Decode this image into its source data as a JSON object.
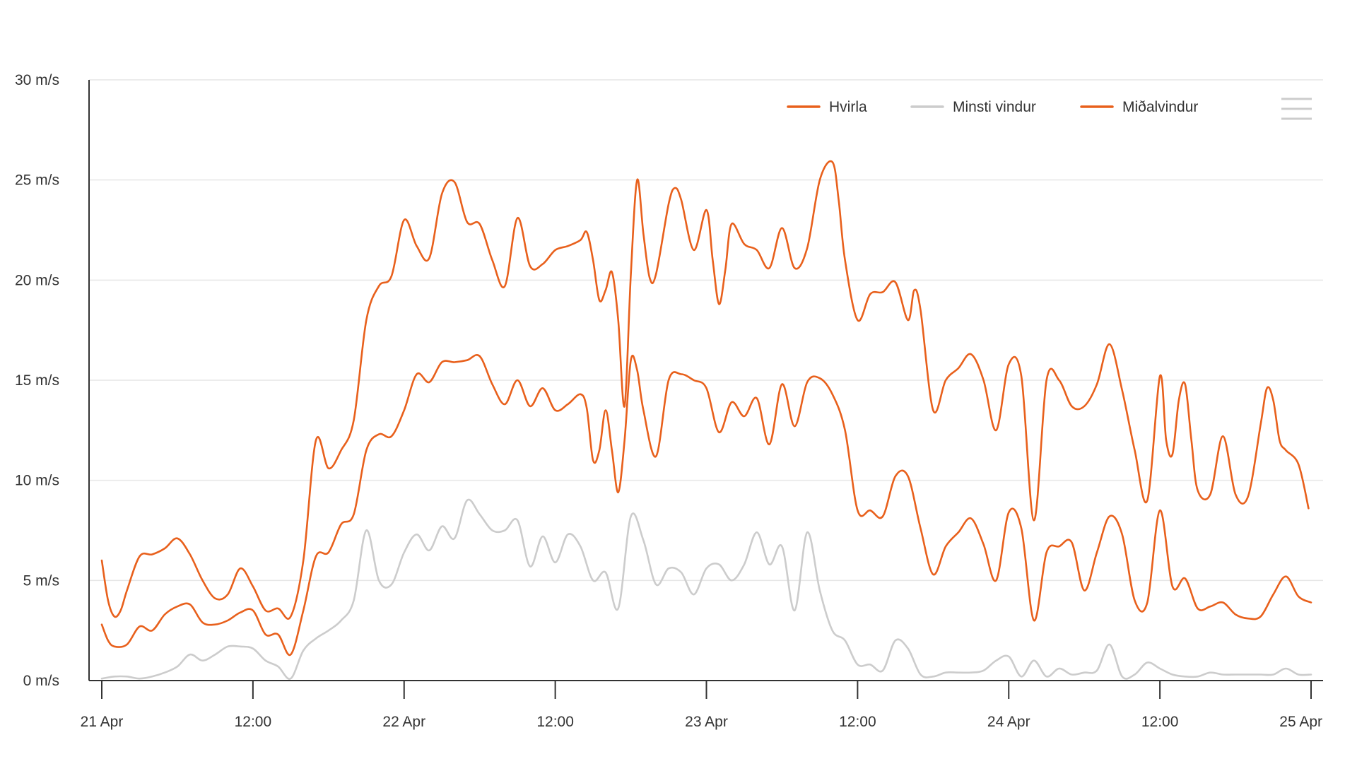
{
  "chart_data": {
    "type": "line",
    "y_unit": "m/s",
    "ylim": [
      0,
      30
    ],
    "y_ticks": [
      {
        "value": 0,
        "label": "0 m/s"
      },
      {
        "value": 5,
        "label": "5 m/s"
      },
      {
        "value": 10,
        "label": "10 m/s"
      },
      {
        "value": 15,
        "label": "15 m/s"
      },
      {
        "value": 20,
        "label": "20 m/s"
      },
      {
        "value": 25,
        "label": "25 m/s"
      },
      {
        "value": 30,
        "label": "30 m/s"
      }
    ],
    "x_unit": "hours since 21 Apr 00:00",
    "xlim": [
      0,
      96
    ],
    "x_ticks": [
      {
        "value": 0,
        "label": "21 Apr"
      },
      {
        "value": 12,
        "label": "12:00"
      },
      {
        "value": 24,
        "label": "22 Apr"
      },
      {
        "value": 36,
        "label": "12:00"
      },
      {
        "value": 48,
        "label": "23 Apr"
      },
      {
        "value": 60,
        "label": "12:00"
      },
      {
        "value": 72,
        "label": "24 Apr"
      },
      {
        "value": 84,
        "label": "12:00"
      },
      {
        "value": 96,
        "label": "25 Apr"
      }
    ],
    "grid": true,
    "legend_position": "top-right",
    "series": [
      {
        "name": "Hvirla",
        "color": "#e8601c",
        "points": [
          [
            0,
            6.0
          ],
          [
            0.5,
            4.0
          ],
          [
            1,
            3.2
          ],
          [
            1.5,
            3.5
          ],
          [
            2,
            4.5
          ],
          [
            3,
            6.2
          ],
          [
            4,
            6.3
          ],
          [
            5,
            6.6
          ],
          [
            6,
            7.1
          ],
          [
            7,
            6.3
          ],
          [
            8,
            5.0
          ],
          [
            9,
            4.1
          ],
          [
            10,
            4.3
          ],
          [
            11,
            5.6
          ],
          [
            12,
            4.7
          ],
          [
            13,
            3.5
          ],
          [
            14,
            3.6
          ],
          [
            15,
            3.2
          ],
          [
            16,
            6.0
          ],
          [
            17,
            12.0
          ],
          [
            18,
            10.6
          ],
          [
            19,
            11.5
          ],
          [
            20,
            13.0
          ],
          [
            21,
            18.0
          ],
          [
            22,
            19.7
          ],
          [
            23,
            20.2
          ],
          [
            24,
            23.0
          ],
          [
            25,
            21.7
          ],
          [
            26,
            21.1
          ],
          [
            27,
            24.3
          ],
          [
            28,
            24.9
          ],
          [
            29,
            22.9
          ],
          [
            30,
            22.8
          ],
          [
            31,
            21.0
          ],
          [
            32,
            19.7
          ],
          [
            33,
            23.1
          ],
          [
            34,
            20.7
          ],
          [
            35,
            20.8
          ],
          [
            36,
            21.5
          ],
          [
            37,
            21.7
          ],
          [
            38,
            22.0
          ],
          [
            38.5,
            22.4
          ],
          [
            39,
            21.0
          ],
          [
            39.5,
            19.0
          ],
          [
            40,
            19.5
          ],
          [
            40.5,
            20.4
          ],
          [
            41,
            18.0
          ],
          [
            41.5,
            13.7
          ],
          [
            42,
            20.3
          ],
          [
            42.5,
            25.0
          ],
          [
            43,
            22.3
          ],
          [
            43.5,
            20.1
          ],
          [
            44,
            20.3
          ],
          [
            45,
            23.8
          ],
          [
            45.5,
            24.6
          ],
          [
            46,
            24.0
          ],
          [
            47,
            21.5
          ],
          [
            48,
            23.5
          ],
          [
            48.5,
            21.0
          ],
          [
            49,
            18.8
          ],
          [
            49.5,
            20.5
          ],
          [
            50,
            22.8
          ],
          [
            51,
            21.8
          ],
          [
            52,
            21.5
          ],
          [
            53,
            20.6
          ],
          [
            54,
            22.6
          ],
          [
            55,
            20.6
          ],
          [
            56,
            21.6
          ],
          [
            57,
            25.0
          ],
          [
            58,
            25.9
          ],
          [
            58.5,
            24.0
          ],
          [
            59,
            21.0
          ],
          [
            60,
            18.0
          ],
          [
            61,
            19.3
          ],
          [
            62,
            19.4
          ],
          [
            63,
            19.9
          ],
          [
            64,
            18.0
          ],
          [
            64.5,
            19.5
          ],
          [
            65,
            18.5
          ],
          [
            66,
            13.5
          ],
          [
            67,
            15.0
          ],
          [
            68,
            15.6
          ],
          [
            69,
            16.3
          ],
          [
            70,
            15.0
          ],
          [
            71,
            12.5
          ],
          [
            72,
            15.8
          ],
          [
            73,
            15.2
          ],
          [
            74,
            8.0
          ],
          [
            75,
            15.0
          ],
          [
            76,
            15.0
          ],
          [
            77,
            13.7
          ],
          [
            78,
            13.7
          ],
          [
            79,
            14.8
          ],
          [
            80,
            16.8
          ],
          [
            81,
            14.5
          ],
          [
            82,
            11.5
          ],
          [
            83,
            9.0
          ],
          [
            84,
            15.2
          ],
          [
            84.5,
            12.0
          ],
          [
            85,
            11.3
          ],
          [
            85.5,
            14.0
          ],
          [
            86,
            14.8
          ],
          [
            86.5,
            12.0
          ],
          [
            87,
            9.5
          ],
          [
            88,
            9.3
          ],
          [
            89,
            12.2
          ],
          [
            90,
            9.3
          ],
          [
            91,
            9.2
          ],
          [
            92,
            12.8
          ],
          [
            92.5,
            14.6
          ],
          [
            93,
            14.0
          ],
          [
            93.5,
            12.0
          ],
          [
            94,
            11.5
          ],
          [
            95,
            10.8
          ],
          [
            95.8,
            8.6
          ]
        ]
      },
      {
        "name": "Minsti vindur",
        "color": "#cccccc",
        "points": [
          [
            0,
            0.1
          ],
          [
            1,
            0.2
          ],
          [
            2,
            0.2
          ],
          [
            3,
            0.1
          ],
          [
            4,
            0.2
          ],
          [
            5,
            0.4
          ],
          [
            6,
            0.7
          ],
          [
            7,
            1.3
          ],
          [
            8,
            1.0
          ],
          [
            9,
            1.3
          ],
          [
            10,
            1.7
          ],
          [
            11,
            1.7
          ],
          [
            12,
            1.6
          ],
          [
            13,
            1.0
          ],
          [
            14,
            0.7
          ],
          [
            15,
            0.1
          ],
          [
            16,
            1.5
          ],
          [
            17,
            2.1
          ],
          [
            18,
            2.5
          ],
          [
            19,
            3.0
          ],
          [
            20,
            4.0
          ],
          [
            21,
            7.5
          ],
          [
            22,
            5.0
          ],
          [
            23,
            4.8
          ],
          [
            24,
            6.4
          ],
          [
            25,
            7.3
          ],
          [
            26,
            6.5
          ],
          [
            27,
            7.7
          ],
          [
            28,
            7.1
          ],
          [
            29,
            9.0
          ],
          [
            30,
            8.3
          ],
          [
            31,
            7.5
          ],
          [
            32,
            7.5
          ],
          [
            33,
            8.0
          ],
          [
            34,
            5.7
          ],
          [
            35,
            7.2
          ],
          [
            36,
            5.9
          ],
          [
            37,
            7.3
          ],
          [
            38,
            6.7
          ],
          [
            39,
            5.0
          ],
          [
            40,
            5.4
          ],
          [
            41,
            3.6
          ],
          [
            42,
            8.2
          ],
          [
            43,
            7.0
          ],
          [
            44,
            4.8
          ],
          [
            45,
            5.6
          ],
          [
            46,
            5.4
          ],
          [
            47,
            4.3
          ],
          [
            48,
            5.6
          ],
          [
            49,
            5.8
          ],
          [
            50,
            5.0
          ],
          [
            51,
            5.8
          ],
          [
            52,
            7.4
          ],
          [
            53,
            5.8
          ],
          [
            54,
            6.7
          ],
          [
            55,
            3.5
          ],
          [
            56,
            7.4
          ],
          [
            57,
            4.5
          ],
          [
            58,
            2.5
          ],
          [
            59,
            2.0
          ],
          [
            60,
            0.8
          ],
          [
            61,
            0.8
          ],
          [
            62,
            0.5
          ],
          [
            63,
            2.0
          ],
          [
            64,
            1.6
          ],
          [
            65,
            0.3
          ],
          [
            66,
            0.2
          ],
          [
            67,
            0.4
          ],
          [
            68,
            0.4
          ],
          [
            69,
            0.4
          ],
          [
            70,
            0.5
          ],
          [
            71,
            1.0
          ],
          [
            72,
            1.2
          ],
          [
            73,
            0.2
          ],
          [
            74,
            1.0
          ],
          [
            75,
            0.2
          ],
          [
            76,
            0.6
          ],
          [
            77,
            0.3
          ],
          [
            78,
            0.4
          ],
          [
            79,
            0.5
          ],
          [
            80,
            1.8
          ],
          [
            81,
            0.2
          ],
          [
            82,
            0.3
          ],
          [
            83,
            0.9
          ],
          [
            84,
            0.6
          ],
          [
            85,
            0.3
          ],
          [
            86,
            0.2
          ],
          [
            87,
            0.2
          ],
          [
            88,
            0.4
          ],
          [
            89,
            0.3
          ],
          [
            90,
            0.3
          ],
          [
            91,
            0.3
          ],
          [
            92,
            0.3
          ],
          [
            93,
            0.3
          ],
          [
            94,
            0.6
          ],
          [
            95,
            0.3
          ],
          [
            96,
            0.3
          ]
        ]
      },
      {
        "name": "Miðalvindur",
        "color": "#e8601c",
        "points": [
          [
            0,
            2.8
          ],
          [
            0.5,
            2.0
          ],
          [
            1,
            1.7
          ],
          [
            2,
            1.8
          ],
          [
            3,
            2.7
          ],
          [
            4,
            2.5
          ],
          [
            5,
            3.3
          ],
          [
            6,
            3.7
          ],
          [
            7,
            3.8
          ],
          [
            8,
            2.9
          ],
          [
            9,
            2.8
          ],
          [
            10,
            3.0
          ],
          [
            11,
            3.4
          ],
          [
            12,
            3.5
          ],
          [
            13,
            2.3
          ],
          [
            14,
            2.3
          ],
          [
            15,
            1.3
          ],
          [
            16,
            3.5
          ],
          [
            17,
            6.2
          ],
          [
            18,
            6.4
          ],
          [
            19,
            7.8
          ],
          [
            20,
            8.3
          ],
          [
            21,
            11.5
          ],
          [
            22,
            12.3
          ],
          [
            23,
            12.2
          ],
          [
            24,
            13.5
          ],
          [
            25,
            15.3
          ],
          [
            26,
            14.9
          ],
          [
            27,
            15.9
          ],
          [
            28,
            15.9
          ],
          [
            29,
            16.0
          ],
          [
            30,
            16.2
          ],
          [
            31,
            14.8
          ],
          [
            32,
            13.8
          ],
          [
            33,
            15.0
          ],
          [
            34,
            13.7
          ],
          [
            35,
            14.6
          ],
          [
            36,
            13.5
          ],
          [
            37,
            13.8
          ],
          [
            38,
            14.3
          ],
          [
            38.5,
            13.6
          ],
          [
            39,
            11.0
          ],
          [
            39.5,
            11.5
          ],
          [
            40,
            13.5
          ],
          [
            40.5,
            11.5
          ],
          [
            41,
            9.4
          ],
          [
            41.5,
            12.0
          ],
          [
            42,
            16.0
          ],
          [
            42.5,
            15.5
          ],
          [
            43,
            13.5
          ],
          [
            44,
            11.2
          ],
          [
            45,
            15.0
          ],
          [
            46,
            15.3
          ],
          [
            47,
            15.0
          ],
          [
            48,
            14.6
          ],
          [
            49,
            12.4
          ],
          [
            50,
            13.9
          ],
          [
            51,
            13.2
          ],
          [
            52,
            14.1
          ],
          [
            53,
            11.8
          ],
          [
            54,
            14.8
          ],
          [
            55,
            12.7
          ],
          [
            56,
            14.9
          ],
          [
            57,
            15.1
          ],
          [
            58,
            14.3
          ],
          [
            59,
            12.5
          ],
          [
            60,
            8.5
          ],
          [
            61,
            8.5
          ],
          [
            62,
            8.2
          ],
          [
            63,
            10.2
          ],
          [
            64,
            10.2
          ],
          [
            65,
            7.6
          ],
          [
            66,
            5.3
          ],
          [
            67,
            6.7
          ],
          [
            68,
            7.4
          ],
          [
            69,
            8.1
          ],
          [
            70,
            6.8
          ],
          [
            71,
            5.0
          ],
          [
            72,
            8.4
          ],
          [
            73,
            7.6
          ],
          [
            74,
            3.0
          ],
          [
            75,
            6.4
          ],
          [
            76,
            6.7
          ],
          [
            77,
            6.9
          ],
          [
            78,
            4.5
          ],
          [
            79,
            6.4
          ],
          [
            80,
            8.2
          ],
          [
            81,
            7.3
          ],
          [
            82,
            4.0
          ],
          [
            83,
            3.9
          ],
          [
            84,
            8.5
          ],
          [
            85,
            4.7
          ],
          [
            86,
            5.1
          ],
          [
            87,
            3.6
          ],
          [
            88,
            3.7
          ],
          [
            89,
            3.9
          ],
          [
            90,
            3.3
          ],
          [
            91,
            3.1
          ],
          [
            92,
            3.2
          ],
          [
            93,
            4.3
          ],
          [
            94,
            5.2
          ],
          [
            95,
            4.2
          ],
          [
            96,
            3.9
          ]
        ]
      }
    ]
  }
}
